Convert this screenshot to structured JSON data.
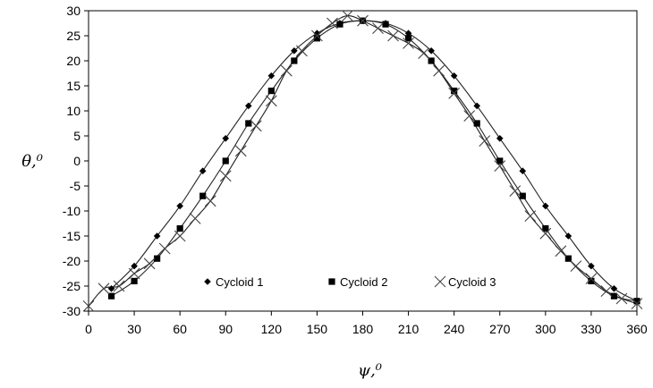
{
  "chart_data": {
    "type": "line",
    "xlabel": "ψ,⁰",
    "ylabel": "θ,⁰",
    "xlim": [
      0,
      360
    ],
    "ylim": [
      -30,
      30
    ],
    "xticks": [
      0,
      30,
      60,
      90,
      120,
      150,
      180,
      210,
      240,
      270,
      300,
      330,
      360
    ],
    "yticks": [
      -30,
      -25,
      -20,
      -15,
      -10,
      -5,
      0,
      5,
      10,
      15,
      20,
      25,
      30
    ],
    "grid": false,
    "legend_position": "bottom-center",
    "series": [
      {
        "name": "Cycloid 1",
        "marker": "diamond",
        "x": [
          15,
          30,
          45,
          60,
          75,
          90,
          105,
          120,
          135,
          150,
          165,
          180,
          195,
          210,
          225,
          240,
          255,
          270,
          285,
          300,
          315,
          330,
          345,
          360
        ],
        "y": [
          -25.5,
          -21,
          -15,
          -9,
          -2,
          4.5,
          11,
          17,
          22,
          25.5,
          27.5,
          28,
          27.5,
          25.5,
          22,
          17,
          11,
          4.5,
          -2,
          -9,
          -15,
          -21,
          -25.5,
          -28
        ]
      },
      {
        "name": "Cycloid 2",
        "marker": "square",
        "x": [
          15,
          30,
          45,
          60,
          75,
          90,
          105,
          120,
          135,
          150,
          165,
          180,
          195,
          210,
          225,
          240,
          255,
          270,
          285,
          300,
          315,
          330,
          345,
          360
        ],
        "y": [
          -27,
          -24,
          -19.5,
          -13.5,
          -7,
          0,
          7.5,
          14,
          20,
          24.5,
          27.3,
          28,
          27.3,
          24.5,
          20,
          14,
          7.5,
          0,
          -7,
          -13.5,
          -19.5,
          -24,
          -27,
          -28
        ]
      },
      {
        "name": "Cycloid 3",
        "marker": "x",
        "x": [
          0,
          10,
          20,
          30,
          40,
          50,
          60,
          70,
          80,
          90,
          100,
          110,
          120,
          130,
          140,
          150,
          160,
          170,
          180,
          190,
          200,
          210,
          220,
          230,
          240,
          250,
          260,
          270,
          280,
          290,
          300,
          310,
          320,
          330,
          340,
          350,
          360
        ],
        "y": [
          -29,
          -25.5,
          -25,
          -22.5,
          -20.5,
          -17.5,
          -15,
          -11.5,
          -8,
          -3,
          2,
          7,
          12,
          18,
          22,
          25,
          27.5,
          29,
          28,
          26.5,
          25,
          23.5,
          21.5,
          18,
          13.5,
          9,
          4,
          -1,
          -6,
          -11,
          -14.5,
          -18,
          -21,
          -23.5,
          -26,
          -27.5,
          -28.5
        ]
      }
    ]
  }
}
